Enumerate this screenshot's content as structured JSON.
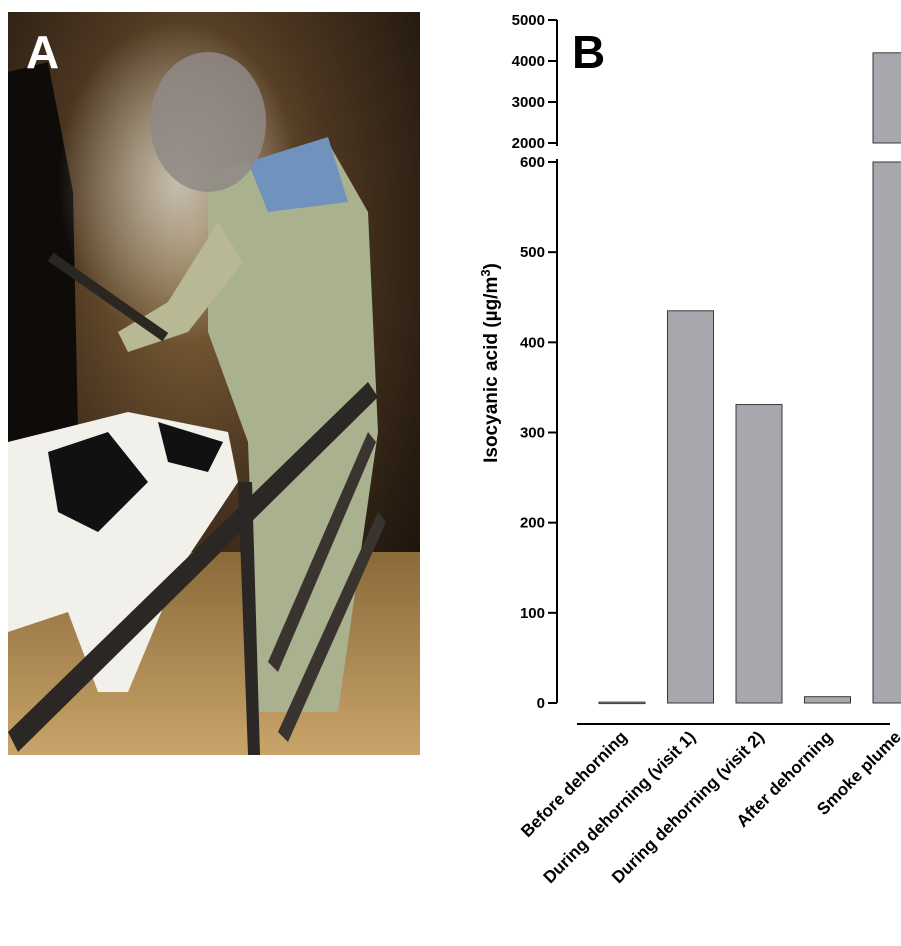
{
  "panels": {
    "left_letter": "A",
    "right_letter": "B"
  },
  "photo": {
    "subject": "worker wearing face shield dehorning a calf with a hot iron, smoke rising, inside a barn pen"
  },
  "chart_data": {
    "type": "bar",
    "title": "",
    "ylabel": "Isocyanic acid (µg/m ³)",
    "ylabel_main": "Isocyanic acid (µg/m",
    "ylabel_sup": "3",
    "ylabel_close": ")",
    "categories": [
      "Before dehorning",
      "During dehorning (visit 1)",
      "During dehorning (visit 2)",
      "After dehorning",
      "Smoke plume"
    ],
    "values": [
      1,
      435,
      331,
      7,
      4200
    ],
    "y_axis_broken": true,
    "lower_segment": {
      "ylim": [
        0,
        600
      ],
      "ticks": [
        "0",
        "100",
        "200",
        "300",
        "400",
        "500",
        "600"
      ]
    },
    "upper_segment": {
      "ylim": [
        2000,
        5000
      ],
      "ticks": [
        "2000",
        "3000",
        "4000",
        "5000"
      ]
    },
    "bar_color": "#a7a7ad",
    "bar_edge_color": "#3a3a3a",
    "grid": false,
    "legend": "none"
  }
}
